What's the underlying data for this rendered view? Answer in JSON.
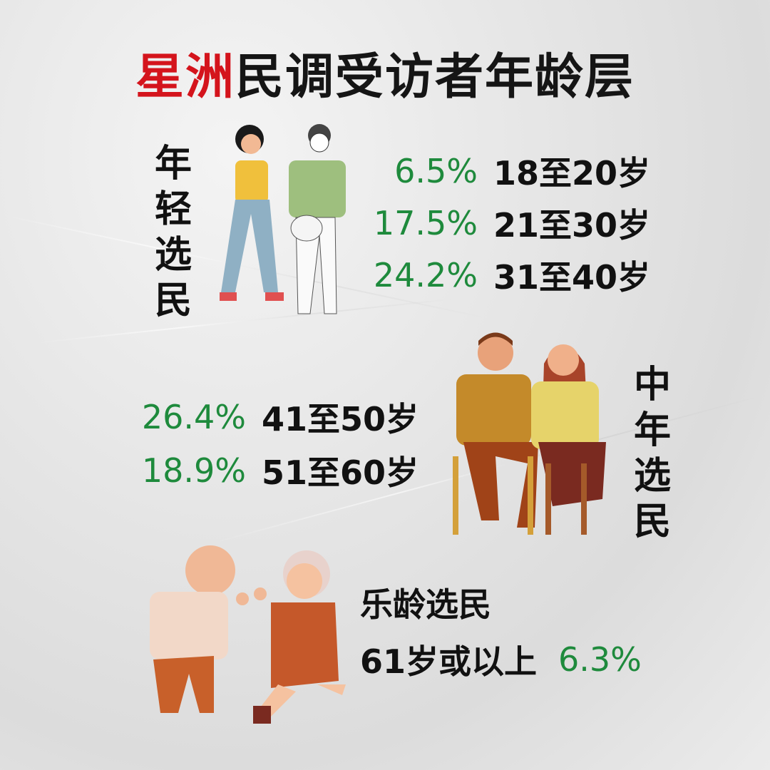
{
  "title": {
    "highlight": "星洲",
    "rest": "民调受访者年龄层"
  },
  "colors": {
    "highlight": "#d4141c",
    "percent": "#1e8a3c",
    "text": "#111111"
  },
  "groups": [
    {
      "name": "年轻选民",
      "rows": [
        {
          "pct": "6.5%",
          "label": "18至20岁"
        },
        {
          "pct": "17.5%",
          "label": "21至30岁"
        },
        {
          "pct": "24.2%",
          "label": "31至40岁"
        }
      ]
    },
    {
      "name": "中年选民",
      "rows": [
        {
          "pct": "26.4%",
          "label": "41至50岁"
        },
        {
          "pct": "18.9%",
          "label": "51至60岁"
        }
      ]
    },
    {
      "name": "乐龄选民",
      "rows": [
        {
          "pct": "6.3%",
          "label": "61岁或以上"
        }
      ]
    }
  ],
  "chart_data": {
    "type": "table",
    "title": "星洲民调受访者年龄层",
    "categories": [
      "18至20岁",
      "21至30岁",
      "31至40岁",
      "41至50岁",
      "51至60岁",
      "61岁或以上"
    ],
    "groups": [
      "年轻选民",
      "年轻选民",
      "年轻选民",
      "中年选民",
      "中年选民",
      "乐龄选民"
    ],
    "values": [
      6.5,
      17.5,
      24.2,
      26.4,
      18.9,
      6.3
    ],
    "unit": "%"
  }
}
